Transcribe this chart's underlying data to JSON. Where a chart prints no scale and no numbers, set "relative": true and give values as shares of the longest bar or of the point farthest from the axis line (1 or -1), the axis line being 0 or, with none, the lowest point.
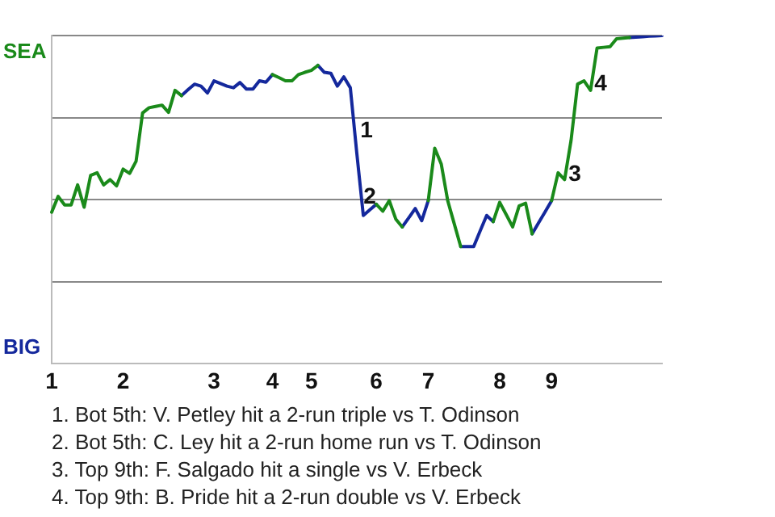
{
  "chart_data": {
    "type": "line",
    "categories": [
      "1",
      null,
      null,
      null,
      null,
      null,
      null,
      null,
      null,
      null,
      null,
      "2",
      null,
      null,
      null,
      null,
      null,
      null,
      null,
      null,
      null,
      null,
      null,
      null,
      null,
      "3",
      null,
      null,
      null,
      null,
      null,
      null,
      null,
      null,
      "4",
      null,
      null,
      null,
      null,
      null,
      "5",
      null,
      null,
      null,
      null,
      null,
      null,
      null,
      null,
      null,
      "6",
      null,
      null,
      null,
      null,
      null,
      null,
      null,
      "7",
      null,
      null,
      null,
      null,
      null,
      null,
      null,
      null,
      null,
      null,
      "8",
      null,
      null,
      null,
      null,
      null,
      null,
      null,
      "9",
      null,
      null,
      null,
      null,
      null,
      null,
      null,
      null,
      null,
      null,
      null,
      null,
      null,
      null,
      null,
      null,
      null
    ],
    "series": [
      {
        "color": "#1a8a1a",
        "values": [
          0.462,
          0.51,
          0.484,
          0.484,
          0.545,
          0.477,
          0.574,
          0.582,
          0.545,
          0.561,
          0.542,
          0.593,
          0.58,
          0.617,
          0.764,
          0.78,
          0.784,
          0.788,
          0.766,
          0.833,
          0.817,
          null,
          null,
          null,
          null,
          null,
          null,
          null,
          null,
          null,
          null,
          null,
          null,
          null,
          0.881,
          0.872,
          0.862,
          0.862,
          0.881,
          0.888,
          0.894,
          0.909,
          null,
          null,
          null,
          null,
          null,
          null,
          null,
          null,
          0.486,
          0.465,
          0.497,
          0.441,
          0.417,
          null,
          null,
          null,
          0.497,
          0.657,
          0.609,
          0.497,
          0.427,
          0.357,
          null,
          null,
          null,
          null,
          0.433,
          0.492,
          0.455,
          0.417,
          0.481,
          0.489,
          0.396,
          null,
          null,
          0.497,
          0.582,
          0.561,
          0.681,
          0.852,
          0.862,
          0.833,
          0.962,
          0.964,
          0.966,
          0.99,
          0.992,
          0.994,
          null,
          null,
          null,
          null,
          null
        ]
      },
      {
        "color": "#14289c",
        "values": [
          null,
          null,
          null,
          null,
          null,
          null,
          null,
          null,
          null,
          null,
          null,
          null,
          null,
          null,
          null,
          null,
          null,
          null,
          null,
          null,
          0.817,
          0.835,
          0.852,
          0.846,
          0.825,
          0.862,
          0.854,
          0.846,
          0.841,
          0.857,
          0.837,
          0.837,
          0.862,
          0.858,
          0.881,
          null,
          null,
          null,
          null,
          null,
          null,
          0.909,
          0.888,
          0.885,
          0.846,
          0.874,
          0.841,
          0.641,
          0.452,
          0.469,
          0.486,
          null,
          null,
          null,
          0.417,
          0.445,
          0.473,
          0.436,
          0.497,
          null,
          null,
          null,
          null,
          0.357,
          0.357,
          0.357,
          0.405,
          0.452,
          0.433,
          null,
          null,
          null,
          null,
          null,
          0.396,
          0.43,
          0.463,
          0.497,
          null,
          null,
          null,
          null,
          null,
          null,
          null,
          null,
          null,
          null,
          null,
          0.994,
          0.995,
          0.996,
          0.998,
          0.999,
          1
        ]
      }
    ],
    "relative": true,
    "grid": "y",
    "annotations": [
      "SEA",
      "BIG",
      "1",
      "2",
      "3",
      "4",
      "1. Bot 5th: V. Petley hit a 2-run triple vs T. Odinson",
      "2. Bot 5th: C. Ley hit a 2-run home run vs T. Odinson",
      "3. Top 9th: F. Salgado hit a single vs V. Erbeck",
      "4. Top 9th: B. Pride hit a 2-run double vs V. Erbeck"
    ],
    "legend": false,
    "marker": "none",
    "line_style": "solid"
  }
}
